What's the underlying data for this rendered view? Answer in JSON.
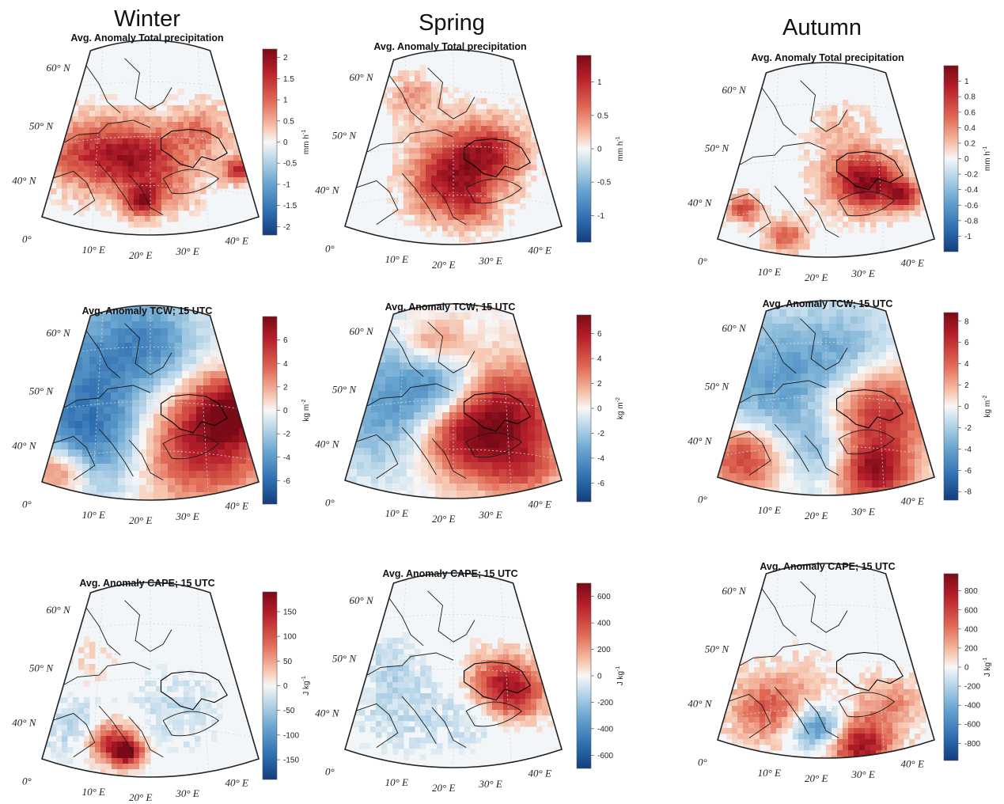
{
  "figure": {
    "columns": [
      "Winter",
      "Spring",
      "Autumn"
    ],
    "grid_labels": {
      "latitudes": [
        "60° N",
        "50° N",
        "40° N",
        "0°"
      ],
      "longitudes": [
        "10° E",
        "20° E",
        "30° E",
        "40° E"
      ]
    },
    "colormap": {
      "negative": "#1f4e99",
      "zero": "#f7f7f7",
      "positive": "#8e0c1c"
    },
    "rows": [
      {
        "variable": "Total precipitation",
        "unit": "mm h^-1",
        "panels": [
          {
            "season": "Winter",
            "title": "Avg. Anomaly Total precipitation",
            "range": [
              -2.2,
              2.2
            ],
            "ticks": [
              "2",
              "1.5",
              "1",
              "0.5",
              "0",
              "-0.5",
              "-1",
              "-1.5",
              "-2"
            ]
          },
          {
            "season": "Spring",
            "title": "Avg. Anomaly Total precipitation",
            "range": [
              -1.4,
              1.4
            ],
            "ticks": [
              "1",
              "0.5",
              "0",
              "-0.5",
              "-1"
            ]
          },
          {
            "season": "Autumn",
            "title": "Avg. Anomaly Total precipitation",
            "range": [
              -1.2,
              1.2
            ],
            "ticks": [
              "1",
              "0.8",
              "0.6",
              "0.4",
              "0.2",
              "0",
              "-0.2",
              "-0.4",
              "-0.6",
              "-0.8",
              "-1"
            ]
          }
        ]
      },
      {
        "variable": "TCW",
        "unit": "kg m^-2",
        "panels": [
          {
            "season": "Winter",
            "title": "Avg. Anomaly TCW; 15 UTC",
            "range": [
              -8,
              8
            ],
            "ticks": [
              "6",
              "4",
              "2",
              "0",
              "-2",
              "-4",
              "-6"
            ]
          },
          {
            "season": "Spring",
            "title": "Avg. Anomaly TCW; 15 UTC",
            "range": [
              -7.5,
              7.5
            ],
            "ticks": [
              "6",
              "4",
              "2",
              "0",
              "-2",
              "-4",
              "-6"
            ]
          },
          {
            "season": "Autumn",
            "title": "Avg. Anomaly TCW; 15 UTC",
            "range": [
              -8.8,
              8.8
            ],
            "ticks": [
              "8",
              "6",
              "4",
              "2",
              "0",
              "-2",
              "-4",
              "-6",
              "-8"
            ]
          }
        ]
      },
      {
        "variable": "CAPE",
        "unit": "J kg^-1",
        "panels": [
          {
            "season": "Winter",
            "title": "Avg. Anomaly CAPE; 15 UTC",
            "range": [
              -190,
              190
            ],
            "ticks": [
              "150",
              "100",
              "50",
              "0",
              "-50",
              "-100",
              "-150"
            ]
          },
          {
            "season": "Spring",
            "title": "Avg. Anomaly CAPE; 15 UTC",
            "range": [
              -700,
              700
            ],
            "ticks": [
              "600",
              "400",
              "200",
              "0",
              "-200",
              "-400",
              "-600"
            ]
          },
          {
            "season": "Autumn",
            "title": "Avg. Anomaly CAPE; 15 UTC",
            "range": [
              -980,
              980
            ],
            "ticks": [
              "800",
              "600",
              "400",
              "200",
              "0",
              "-200",
              "-400",
              "-600",
              "-800"
            ]
          }
        ]
      }
    ]
  }
}
